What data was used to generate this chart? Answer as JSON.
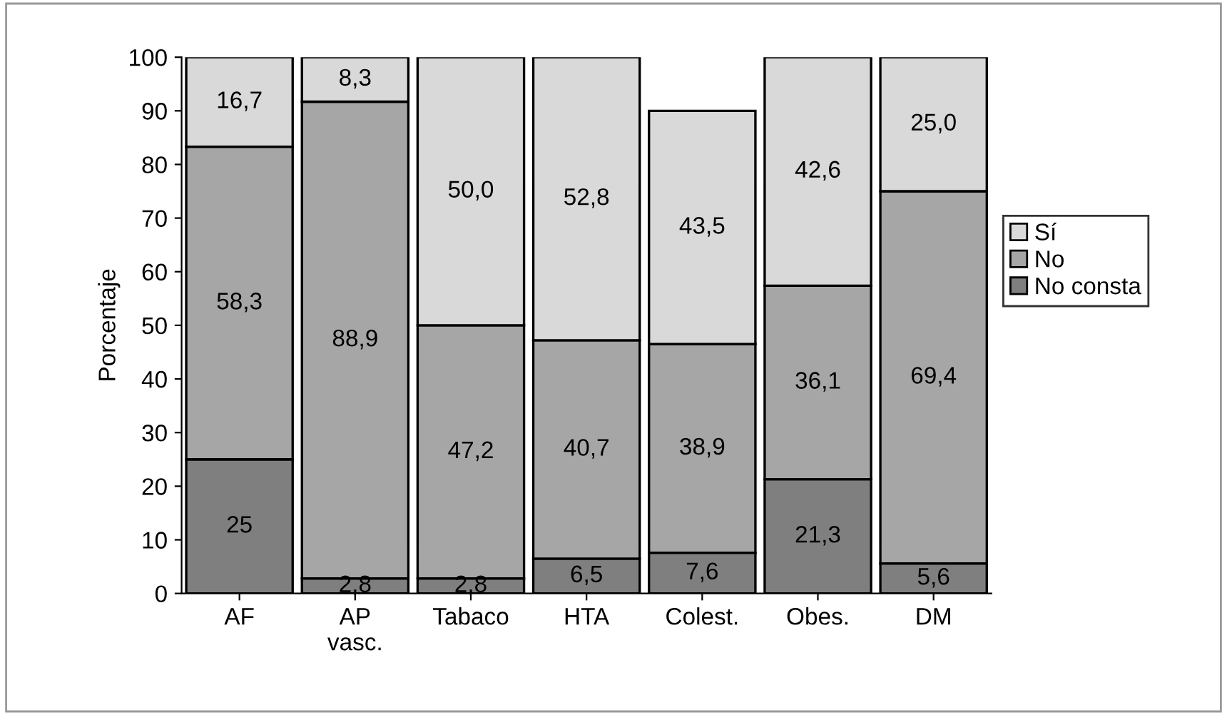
{
  "chart_data": {
    "type": "bar",
    "stacked": true,
    "ylabel": "Porcentaje",
    "categories": [
      "AF",
      "AP\nvasc.",
      "Tabaco",
      "HTA",
      "Colest.",
      "Obes.",
      "DM"
    ],
    "ylim": [
      0,
      100
    ],
    "yticks": [
      0,
      10,
      20,
      30,
      40,
      50,
      60,
      70,
      80,
      90,
      100
    ],
    "grid": false,
    "legend": "right",
    "series": [
      {
        "name": "No consta",
        "color": "#7f7f7f",
        "values": [
          25,
          2.8,
          2.8,
          6.5,
          7.6,
          21.3,
          5.6
        ],
        "value_labels": [
          "25",
          "2,8",
          "2,8",
          "6,5",
          "7,6",
          "21,3",
          "5,6"
        ]
      },
      {
        "name": "No",
        "color": "#a6a6a6",
        "values": [
          58.3,
          88.9,
          47.2,
          40.7,
          38.9,
          36.1,
          69.4
        ],
        "value_labels": [
          "58,3",
          "88,9",
          "47,2",
          "40,7",
          "38,9",
          "36,1",
          "69,4"
        ]
      },
      {
        "name": "Sí",
        "color": "#d9d9d9",
        "values": [
          16.7,
          8.3,
          50.0,
          52.8,
          43.5,
          42.6,
          25.0
        ],
        "value_labels": [
          "16,7",
          "8,3",
          "50,0",
          "52,8",
          "43,5",
          "42,6",
          "25,0"
        ]
      }
    ]
  }
}
